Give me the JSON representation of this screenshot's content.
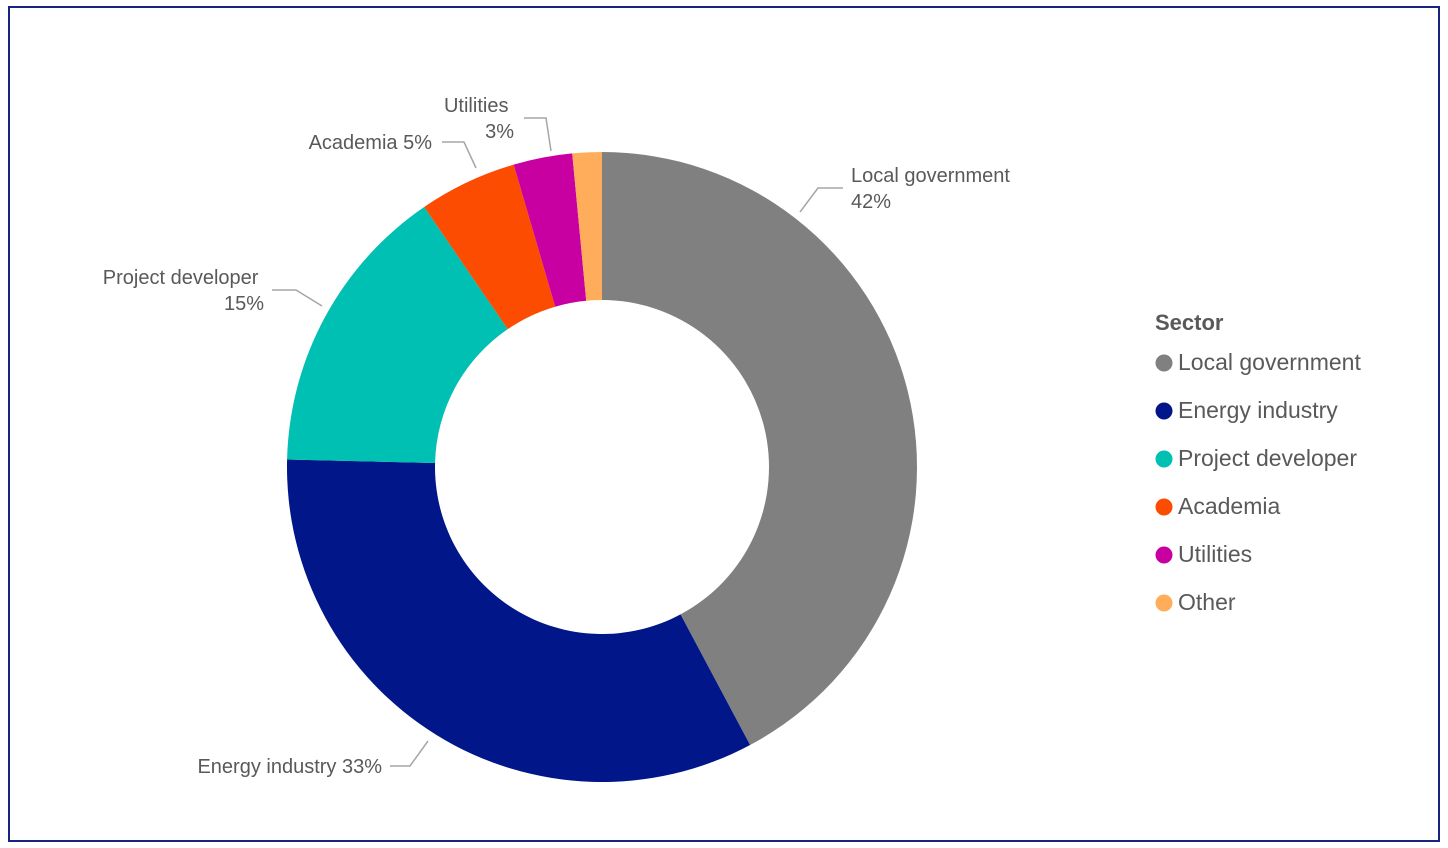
{
  "chart_data": {
    "type": "pie",
    "donut": true,
    "categories": [
      "Local government",
      "Energy industry",
      "Project developer",
      "Academia",
      "Utilities",
      "Other"
    ],
    "values": [
      42,
      33,
      15,
      5,
      3,
      1.5
    ],
    "colors": [
      "#808080",
      "#001689",
      "#00bfb3",
      "#fc4c02",
      "#c800a1",
      "#ffad5b"
    ],
    "data_labels": [
      {
        "line1": "Local government",
        "line2": "42%"
      },
      {
        "line1": "Energy industry 33%",
        "line2": ""
      },
      {
        "line1": "Project developer",
        "line2": "15%"
      },
      {
        "line1": "Academia 5%",
        "line2": ""
      },
      {
        "line1": "Utilities",
        "line2": "3%"
      }
    ],
    "legend": {
      "title": "Sector",
      "position": "right",
      "items": [
        "Local government",
        "Energy industry",
        "Project developer",
        "Academia",
        "Utilities",
        "Other"
      ]
    }
  }
}
